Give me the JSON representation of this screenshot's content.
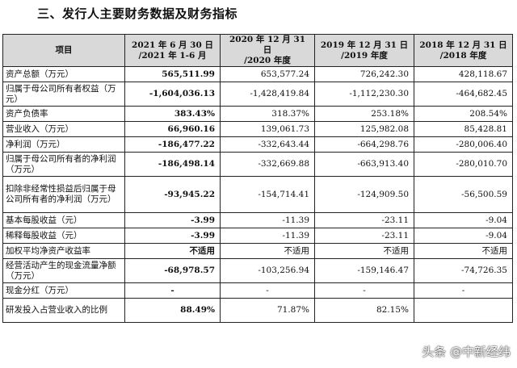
{
  "title": "三、发行人主要财务数据及财务指标",
  "table": {
    "headers": [
      "项目",
      "2021 年 6 月 30 日\n/2021 年 1-6 月",
      "2020 年 12 月 31 日\n/2020 年度",
      "2019 年 12 月 31 日\n/2019 年度",
      "2018 年 12 月 31 日\n/2018 年度"
    ],
    "rows": [
      {
        "label": "资产总额（万元）",
        "values": [
          "565,511.99",
          "653,577.24",
          "726,242.30",
          "428,118.67"
        ]
      },
      {
        "label": "归属于母公司所有者权益（万元）",
        "values": [
          "-1,604,036.13",
          "-1,428,419.84",
          "-1,112,230.30",
          "-464,682.45"
        ]
      },
      {
        "label": "资产负债率",
        "values": [
          "383.43%",
          "318.37%",
          "253.18%",
          "208.54%"
        ]
      },
      {
        "label": "营业收入（万元）",
        "values": [
          "66,960.16",
          "139,061.73",
          "125,982.08",
          "85,428.81"
        ]
      },
      {
        "label": "净利润（万元）",
        "values": [
          "-186,477.22",
          "-332,643.44",
          "-664,298.76",
          "-280,006.40"
        ]
      },
      {
        "label": "归属于母公司所有者的净利润（万元）",
        "values": [
          "-186,498.14",
          "-332,669.88",
          "-663,913.40",
          "-280,010.70"
        ]
      },
      {
        "label": "扣除非经常性损益后归属于母公司所有者的净利润（万元）",
        "values": [
          "-93,945.22",
          "-154,714.41",
          "-124,909.50",
          "-56,500.59"
        ]
      },
      {
        "label": "基本每股收益（元）",
        "values": [
          "-3.99",
          "-11.39",
          "-23.11",
          "-9.04"
        ]
      },
      {
        "label": "稀释每股收益（元）",
        "values": [
          "-3.99",
          "-11.39",
          "-23.11",
          "-9.04"
        ]
      },
      {
        "label": "加权平均净资产收益率",
        "values": [
          "不适用",
          "不适用",
          "不适用",
          "不适用"
        ]
      },
      {
        "label": "经营活动产生的现金流量净额（万元）",
        "values": [
          "-68,978.57",
          "-103,256.94",
          "-159,146.47",
          "-74,726.35"
        ]
      },
      {
        "label": "现金分红（万元）",
        "values": [
          "-",
          "-",
          "-",
          "-"
        ]
      },
      {
        "label": "研发投入占营业收入的比例",
        "values": [
          "88.49%",
          "71.87%",
          "82.15%",
          ""
        ]
      }
    ]
  },
  "watermark": {
    "text": "头条 @中新经纬",
    "icon": "toutiao-logo-icon"
  }
}
